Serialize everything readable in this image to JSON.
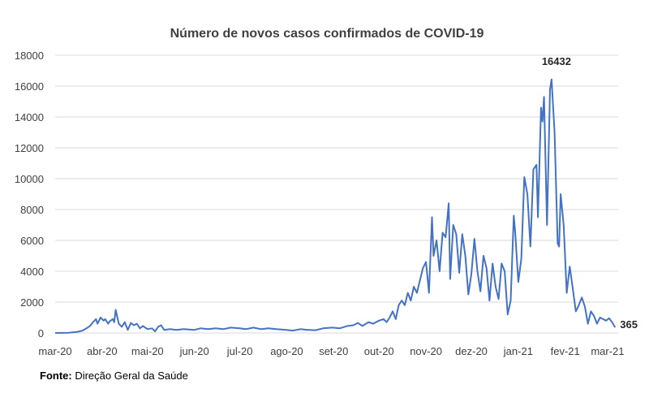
{
  "chart_data": {
    "type": "line",
    "title": "Número de novos casos confirmados de COVID-19",
    "xlabel": "",
    "ylabel": "",
    "ylim": [
      0,
      18000
    ],
    "yticks": [
      0,
      2000,
      4000,
      6000,
      8000,
      10000,
      12000,
      14000,
      16000,
      18000
    ],
    "xtick_labels": [
      "mar-20",
      "abr-20",
      "mai-20",
      "jun-20",
      "jul-20",
      "ago-20",
      "set-20",
      "out-20",
      "nov-20",
      "dez-20",
      "jan-21",
      "fev-21",
      "mar-21"
    ],
    "grid": "horizontal",
    "legend": "none",
    "series_color": "#4472c4",
    "series": [
      {
        "x_start": "2020-03-01",
        "x_end": "2021-03-08",
        "points": [
          [
            "2020-03-01",
            0
          ],
          [
            "2020-03-10",
            10
          ],
          [
            "2020-03-16",
            80
          ],
          [
            "2020-03-19",
            150
          ],
          [
            "2020-03-22",
            320
          ],
          [
            "2020-03-24",
            450
          ],
          [
            "2020-03-26",
            700
          ],
          [
            "2020-03-28",
            900
          ],
          [
            "2020-03-29",
            600
          ],
          [
            "2020-03-31",
            1000
          ],
          [
            "2020-04-02",
            800
          ],
          [
            "2020-04-03",
            900
          ],
          [
            "2020-04-05",
            600
          ],
          [
            "2020-04-06",
            750
          ],
          [
            "2020-04-08",
            900
          ],
          [
            "2020-04-09",
            700
          ],
          [
            "2020-04-10",
            1500
          ],
          [
            "2020-04-12",
            600
          ],
          [
            "2020-04-14",
            400
          ],
          [
            "2020-04-16",
            700
          ],
          [
            "2020-04-18",
            200
          ],
          [
            "2020-04-20",
            650
          ],
          [
            "2020-04-22",
            500
          ],
          [
            "2020-04-24",
            600
          ],
          [
            "2020-04-26",
            300
          ],
          [
            "2020-04-28",
            450
          ],
          [
            "2020-05-01",
            250
          ],
          [
            "2020-05-04",
            300
          ],
          [
            "2020-05-06",
            100
          ],
          [
            "2020-05-08",
            400
          ],
          [
            "2020-05-10",
            500
          ],
          [
            "2020-05-12",
            200
          ],
          [
            "2020-05-16",
            250
          ],
          [
            "2020-05-20",
            200
          ],
          [
            "2020-05-25",
            250
          ],
          [
            "2020-06-01",
            200
          ],
          [
            "2020-06-05",
            300
          ],
          [
            "2020-06-10",
            250
          ],
          [
            "2020-06-15",
            300
          ],
          [
            "2020-06-20",
            250
          ],
          [
            "2020-06-25",
            350
          ],
          [
            "2020-07-01",
            300
          ],
          [
            "2020-07-05",
            250
          ],
          [
            "2020-07-10",
            350
          ],
          [
            "2020-07-15",
            250
          ],
          [
            "2020-07-20",
            300
          ],
          [
            "2020-07-25",
            250
          ],
          [
            "2020-08-01",
            200
          ],
          [
            "2020-08-05",
            150
          ],
          [
            "2020-08-10",
            250
          ],
          [
            "2020-08-15",
            200
          ],
          [
            "2020-08-20",
            180
          ],
          [
            "2020-08-25",
            300
          ],
          [
            "2020-08-31",
            350
          ],
          [
            "2020-09-05",
            300
          ],
          [
            "2020-09-10",
            450
          ],
          [
            "2020-09-14",
            500
          ],
          [
            "2020-09-17",
            650
          ],
          [
            "2020-09-20",
            450
          ],
          [
            "2020-09-24",
            700
          ],
          [
            "2020-09-27",
            600
          ],
          [
            "2020-10-01",
            800
          ],
          [
            "2020-10-04",
            900
          ],
          [
            "2020-10-06",
            700
          ],
          [
            "2020-10-08",
            1000
          ],
          [
            "2020-10-10",
            1400
          ],
          [
            "2020-10-12",
            900
          ],
          [
            "2020-10-14",
            1800
          ],
          [
            "2020-10-16",
            2100
          ],
          [
            "2020-10-18",
            1800
          ],
          [
            "2020-10-20",
            2600
          ],
          [
            "2020-10-22",
            2100
          ],
          [
            "2020-10-24",
            3000
          ],
          [
            "2020-10-26",
            2600
          ],
          [
            "2020-10-28",
            3400
          ],
          [
            "2020-10-30",
            4200
          ],
          [
            "2020-11-01",
            4600
          ],
          [
            "2020-11-03",
            2600
          ],
          [
            "2020-11-05",
            7500
          ],
          [
            "2020-11-06",
            5000
          ],
          [
            "2020-11-08",
            6000
          ],
          [
            "2020-11-10",
            4000
          ],
          [
            "2020-11-12",
            6500
          ],
          [
            "2020-11-14",
            6200
          ],
          [
            "2020-11-16",
            8400
          ],
          [
            "2020-11-17",
            3500
          ],
          [
            "2020-11-19",
            7000
          ],
          [
            "2020-11-21",
            6400
          ],
          [
            "2020-11-23",
            3900
          ],
          [
            "2020-11-25",
            6400
          ],
          [
            "2020-11-27",
            5000
          ],
          [
            "2020-11-29",
            2500
          ],
          [
            "2020-12-01",
            3800
          ],
          [
            "2020-12-03",
            6100
          ],
          [
            "2020-12-05",
            4000
          ],
          [
            "2020-12-07",
            2700
          ],
          [
            "2020-12-09",
            5000
          ],
          [
            "2020-12-11",
            4200
          ],
          [
            "2020-12-13",
            2100
          ],
          [
            "2020-12-15",
            4500
          ],
          [
            "2020-12-17",
            3000
          ],
          [
            "2020-12-19",
            2200
          ],
          [
            "2020-12-21",
            4500
          ],
          [
            "2020-12-23",
            4000
          ],
          [
            "2020-12-25",
            1200
          ],
          [
            "2020-12-27",
            2100
          ],
          [
            "2020-12-29",
            7600
          ],
          [
            "2020-12-30",
            6500
          ],
          [
            "2021-01-01",
            3300
          ],
          [
            "2021-01-03",
            4800
          ],
          [
            "2021-01-05",
            10100
          ],
          [
            "2021-01-07",
            9000
          ],
          [
            "2021-01-09",
            5600
          ],
          [
            "2021-01-11",
            10600
          ],
          [
            "2021-01-13",
            10900
          ],
          [
            "2021-01-14",
            7500
          ],
          [
            "2021-01-16",
            14600
          ],
          [
            "2021-01-17",
            13700
          ],
          [
            "2021-01-18",
            15300
          ],
          [
            "2021-01-20",
            7000
          ],
          [
            "2021-01-22",
            15800
          ],
          [
            "2021-01-23",
            16432
          ],
          [
            "2021-01-25",
            13000
          ],
          [
            "2021-01-27",
            5800
          ],
          [
            "2021-01-28",
            5600
          ],
          [
            "2021-01-29",
            9000
          ],
          [
            "2021-01-31",
            7000
          ],
          [
            "2021-02-02",
            2600
          ],
          [
            "2021-02-04",
            4300
          ],
          [
            "2021-02-06",
            2900
          ],
          [
            "2021-02-08",
            1400
          ],
          [
            "2021-02-10",
            1800
          ],
          [
            "2021-02-12",
            2300
          ],
          [
            "2021-02-14",
            1700
          ],
          [
            "2021-02-16",
            600
          ],
          [
            "2021-02-18",
            1400
          ],
          [
            "2021-02-20",
            1100
          ],
          [
            "2021-02-22",
            600
          ],
          [
            "2021-02-24",
            1000
          ],
          [
            "2021-02-26",
            900
          ],
          [
            "2021-02-28",
            800
          ],
          [
            "2021-03-02",
            950
          ],
          [
            "2021-03-04",
            700
          ],
          [
            "2021-03-06",
            365
          ]
        ]
      }
    ],
    "annotations": [
      {
        "text": "16432",
        "x": "2021-01-23",
        "y": 16432
      },
      {
        "text": "365",
        "x": "2021-03-06",
        "y": 365
      }
    ]
  },
  "source": {
    "label": "Fonte:",
    "text": " Direção Geral da Saúde"
  }
}
